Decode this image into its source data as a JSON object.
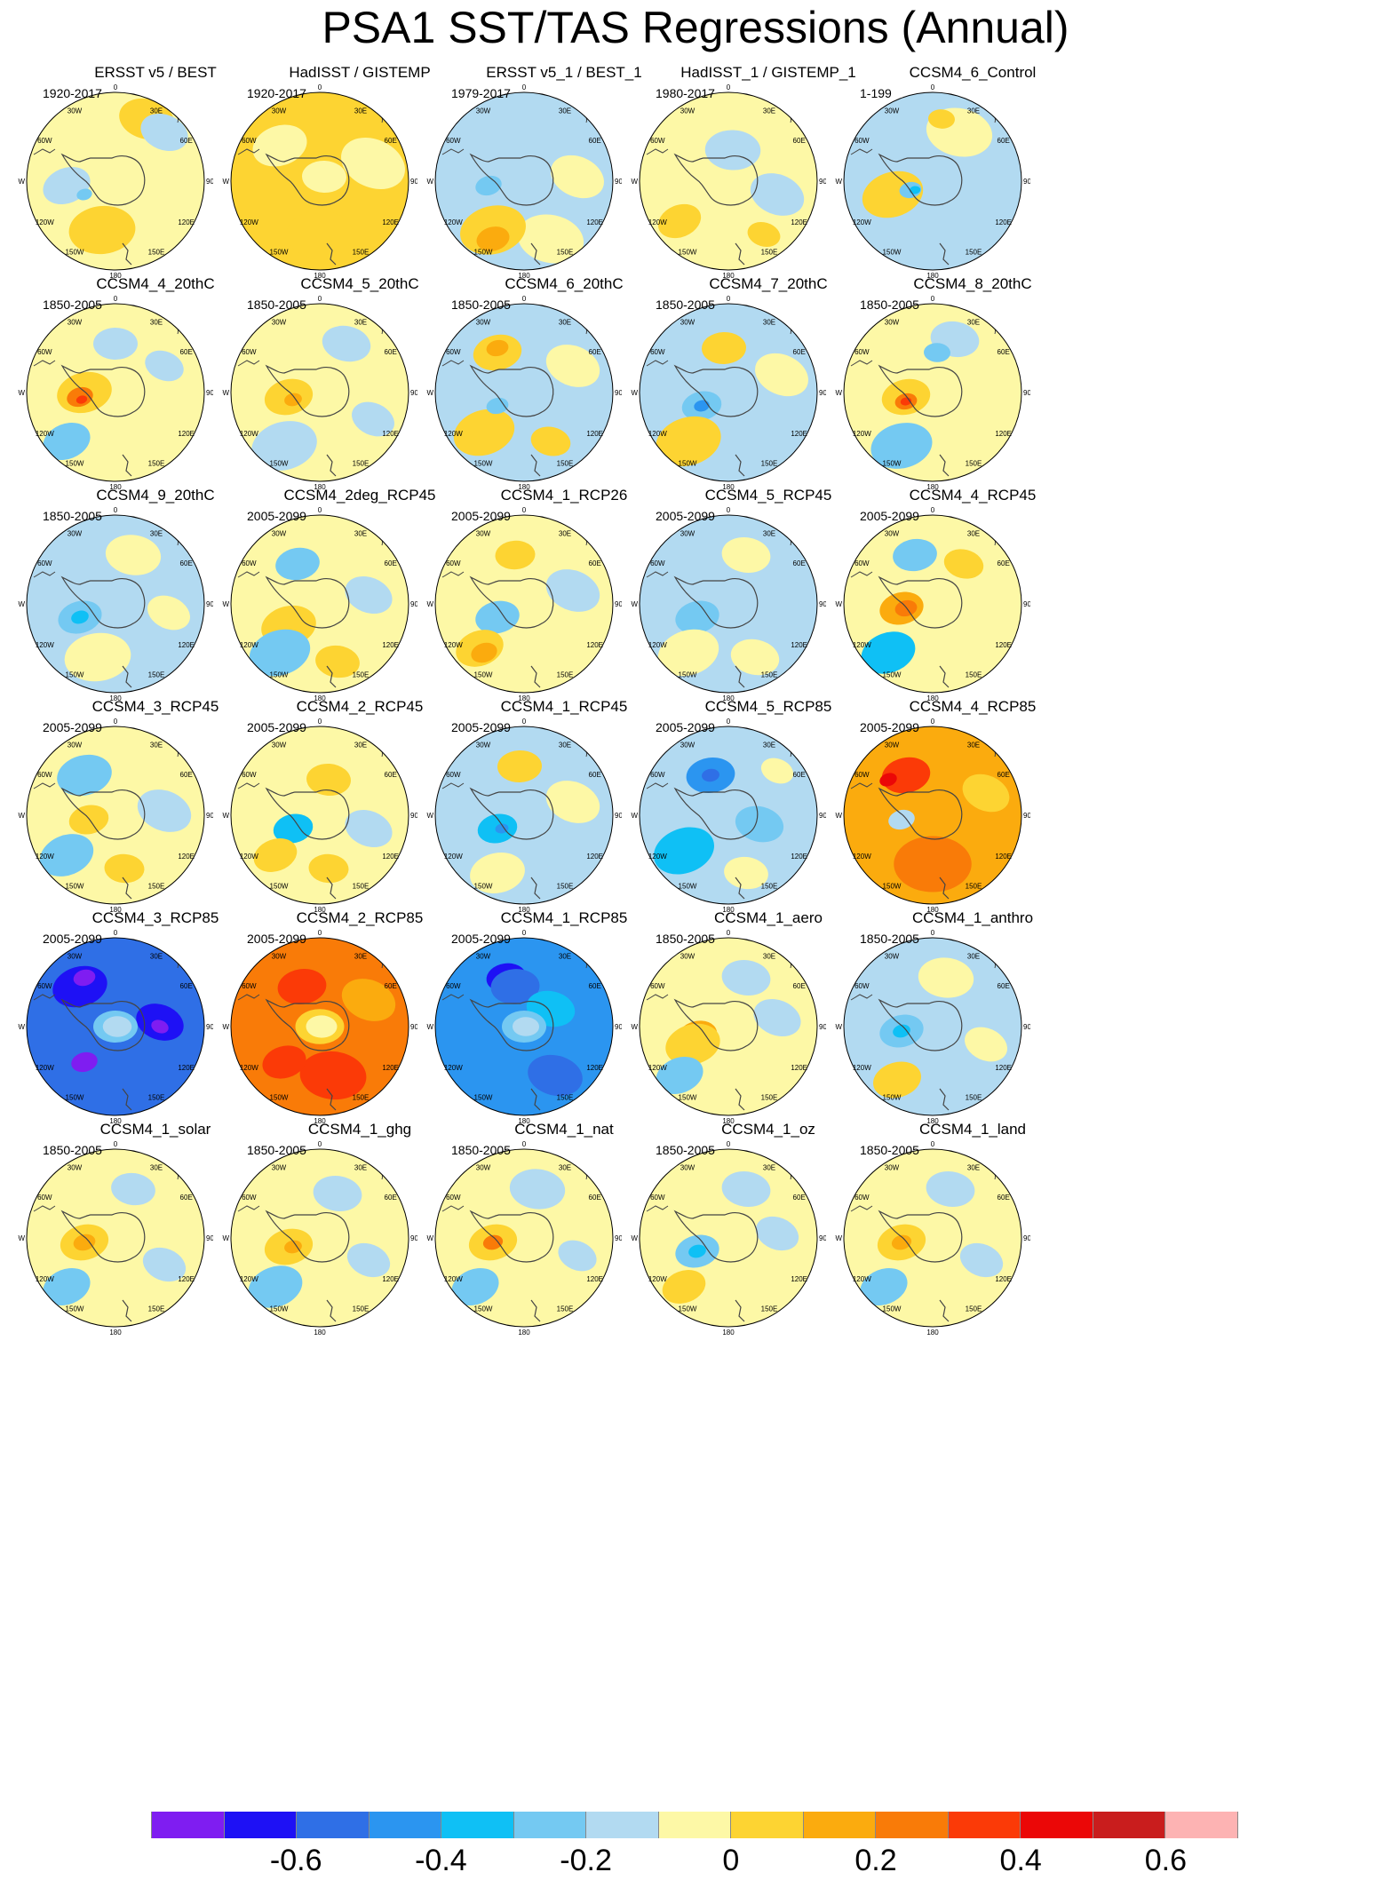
{
  "title": "PSA1 SST/TAS Regressions (Annual)",
  "longitude_labels": [
    "0",
    "30E",
    "60E",
    "90E",
    "120E",
    "150E",
    "180",
    "150W",
    "120W",
    "90W",
    "60W",
    "30W"
  ],
  "palette": [
    "#7f1df1",
    "#1e11f5",
    "#2f6fe6",
    "#2b95f0",
    "#0fc0f5",
    "#74c9f2",
    "#b2daf1",
    "#fdf8a6",
    "#fdd432",
    "#fbab0e",
    "#f97b08",
    "#fb3a07",
    "#eb0707",
    "#c91d1d",
    "#fdb3b3"
  ],
  "colorbar": {
    "ticks": [
      {
        "label": "-0.6",
        "pos": 2
      },
      {
        "label": "-0.4",
        "pos": 4
      },
      {
        "label": "-0.2",
        "pos": 6
      },
      {
        "label": "0",
        "pos": 8
      },
      {
        "label": "0.2",
        "pos": 10
      },
      {
        "label": "0.4",
        "pos": 12
      },
      {
        "label": "0.6",
        "pos": 14
      }
    ]
  },
  "panels": [
    {
      "title": "ERSST v5 / BEST",
      "years": "1920-2017",
      "base": 7,
      "blobs": [
        [
          8,
          0.35,
          0.7,
          0.25
        ],
        [
          8,
          -0.15,
          -0.55,
          0.3
        ],
        [
          6,
          -0.55,
          -0.05,
          0.22
        ],
        [
          5,
          -0.35,
          -0.15,
          0.07
        ],
        [
          6,
          0.55,
          0.55,
          0.22
        ]
      ]
    },
    {
      "title": "HadISST / GISTEMP",
      "years": "1920-2017",
      "base": 8,
      "blobs": [
        [
          7,
          0.6,
          0.2,
          0.3
        ],
        [
          7,
          -0.45,
          0.4,
          0.25
        ],
        [
          7,
          0.05,
          0.05,
          0.2
        ],
        [
          8,
          0.0,
          -0.6,
          0.3
        ]
      ]
    },
    {
      "title": "ERSST v5_1 / BEST_1",
      "years": "1979-2017",
      "base": 6,
      "blobs": [
        [
          7,
          0.3,
          -0.65,
          0.3
        ],
        [
          8,
          -0.35,
          -0.55,
          0.3
        ],
        [
          9,
          -0.35,
          -0.65,
          0.15
        ],
        [
          5,
          -0.4,
          -0.05,
          0.12
        ],
        [
          7,
          0.6,
          0.05,
          0.25
        ]
      ]
    },
    {
      "title": "HadISST_1 / GISTEMP_1",
      "years": "1980-2017",
      "base": 7,
      "blobs": [
        [
          6,
          0.05,
          0.35,
          0.25
        ],
        [
          8,
          -0.55,
          -0.45,
          0.2
        ],
        [
          6,
          0.55,
          -0.15,
          0.25
        ],
        [
          8,
          0.4,
          -0.6,
          0.15
        ]
      ]
    },
    {
      "title": "CCSM4_6_Control",
      "years": "1-199",
      "base": 6,
      "blobs": [
        [
          8,
          -0.45,
          -0.15,
          0.28
        ],
        [
          5,
          -0.25,
          -0.1,
          0.1
        ],
        [
          4,
          -0.2,
          -0.1,
          0.05
        ],
        [
          7,
          0.3,
          0.55,
          0.3
        ],
        [
          8,
          0.1,
          0.7,
          0.12
        ]
      ]
    },
    {
      "title": "CCSM4_4_20thC",
      "years": "1850-2005",
      "base": 7,
      "blobs": [
        [
          8,
          -0.35,
          0.0,
          0.25
        ],
        [
          10,
          -0.4,
          -0.05,
          0.12
        ],
        [
          11,
          -0.38,
          -0.08,
          0.05
        ],
        [
          5,
          -0.55,
          -0.55,
          0.22
        ],
        [
          6,
          0.0,
          0.55,
          0.2
        ],
        [
          6,
          0.55,
          0.3,
          0.18
        ]
      ]
    },
    {
      "title": "CCSM4_5_20thC",
      "years": "1850-2005",
      "base": 7,
      "blobs": [
        [
          8,
          -0.35,
          -0.05,
          0.22
        ],
        [
          9,
          -0.3,
          -0.08,
          0.08
        ],
        [
          6,
          -0.4,
          -0.6,
          0.3
        ],
        [
          6,
          0.3,
          0.55,
          0.22
        ],
        [
          6,
          0.6,
          -0.3,
          0.2
        ]
      ]
    },
    {
      "title": "CCSM4_6_20thC",
      "years": "1850-2005",
      "base": 6,
      "blobs": [
        [
          8,
          -0.3,
          0.45,
          0.22
        ],
        [
          9,
          -0.3,
          0.5,
          0.1
        ],
        [
          8,
          -0.45,
          -0.45,
          0.28
        ],
        [
          5,
          -0.3,
          -0.15,
          0.1
        ],
        [
          8,
          0.3,
          -0.55,
          0.18
        ],
        [
          7,
          0.55,
          0.3,
          0.25
        ]
      ]
    },
    {
      "title": "CCSM4_7_20thC",
      "years": "1850-2005",
      "base": 6,
      "blobs": [
        [
          5,
          -0.3,
          -0.15,
          0.18
        ],
        [
          3,
          -0.3,
          -0.15,
          0.07
        ],
        [
          8,
          -0.45,
          -0.55,
          0.3
        ],
        [
          8,
          -0.05,
          0.5,
          0.2
        ],
        [
          7,
          0.6,
          0.2,
          0.25
        ]
      ]
    },
    {
      "title": "CCSM4_8_20thC",
      "years": "1850-2005",
      "base": 7,
      "blobs": [
        [
          8,
          -0.3,
          -0.05,
          0.22
        ],
        [
          10,
          -0.3,
          -0.1,
          0.1
        ],
        [
          11,
          -0.3,
          -0.1,
          0.05
        ],
        [
          5,
          -0.35,
          -0.6,
          0.28
        ],
        [
          6,
          0.25,
          0.6,
          0.22
        ],
        [
          5,
          0.05,
          0.45,
          0.12
        ]
      ]
    },
    {
      "title": "CCSM4_9_20thC",
      "years": "1850-2005",
      "base": 6,
      "blobs": [
        [
          5,
          -0.4,
          -0.15,
          0.2
        ],
        [
          4,
          -0.4,
          -0.15,
          0.08
        ],
        [
          7,
          -0.2,
          -0.6,
          0.3
        ],
        [
          7,
          0.2,
          0.55,
          0.25
        ],
        [
          7,
          0.6,
          -0.1,
          0.2
        ]
      ]
    },
    {
      "title": "CCSM4_2deg_RCP45",
      "years": "2005-2099",
      "base": 7,
      "blobs": [
        [
          5,
          -0.25,
          0.45,
          0.2
        ],
        [
          8,
          -0.35,
          -0.25,
          0.25
        ],
        [
          5,
          -0.45,
          -0.55,
          0.28
        ],
        [
          6,
          0.55,
          0.1,
          0.22
        ],
        [
          8,
          0.2,
          -0.65,
          0.2
        ]
      ]
    },
    {
      "title": "CCSM4_1_RCP26",
      "years": "2005-2099",
      "base": 7,
      "blobs": [
        [
          5,
          -0.3,
          -0.15,
          0.2
        ],
        [
          8,
          -0.5,
          -0.5,
          0.22
        ],
        [
          9,
          -0.45,
          -0.55,
          0.12
        ],
        [
          6,
          0.55,
          0.15,
          0.25
        ],
        [
          8,
          -0.1,
          0.55,
          0.18
        ]
      ]
    },
    {
      "title": "CCSM4_5_RCP45",
      "years": "2005-2099",
      "base": 6,
      "blobs": [
        [
          5,
          -0.35,
          -0.15,
          0.2
        ],
        [
          7,
          -0.45,
          -0.55,
          0.28
        ],
        [
          7,
          0.3,
          -0.6,
          0.22
        ],
        [
          7,
          0.2,
          0.55,
          0.22
        ]
      ]
    },
    {
      "title": "CCSM4_4_RCP45",
      "years": "2005-2099",
      "base": 7,
      "blobs": [
        [
          9,
          -0.35,
          -0.05,
          0.2
        ],
        [
          10,
          -0.3,
          -0.05,
          0.1
        ],
        [
          4,
          -0.5,
          -0.55,
          0.25
        ],
        [
          5,
          -0.2,
          0.55,
          0.2
        ],
        [
          8,
          0.35,
          0.45,
          0.18
        ]
      ]
    },
    {
      "title": "CCSM4_3_RCP45",
      "years": "2005-2099",
      "base": 7,
      "blobs": [
        [
          5,
          -0.35,
          0.45,
          0.25
        ],
        [
          8,
          -0.3,
          -0.05,
          0.18
        ],
        [
          5,
          -0.55,
          -0.45,
          0.25
        ],
        [
          6,
          0.55,
          0.05,
          0.25
        ],
        [
          8,
          0.1,
          -0.6,
          0.18
        ]
      ]
    },
    {
      "title": "CCSM4_2_RCP45",
      "years": "2005-2099",
      "base": 7,
      "blobs": [
        [
          4,
          -0.3,
          -0.15,
          0.18
        ],
        [
          8,
          -0.5,
          -0.45,
          0.2
        ],
        [
          8,
          0.1,
          0.4,
          0.2
        ],
        [
          6,
          0.55,
          -0.15,
          0.22
        ],
        [
          8,
          0.1,
          -0.6,
          0.18
        ]
      ]
    },
    {
      "title": "CCSM4_1_RCP45",
      "years": "2005-2099",
      "base": 6,
      "blobs": [
        [
          4,
          -0.3,
          -0.15,
          0.18
        ],
        [
          3,
          -0.25,
          -0.15,
          0.06
        ],
        [
          8,
          -0.05,
          0.55,
          0.2
        ],
        [
          7,
          0.55,
          0.15,
          0.25
        ],
        [
          7,
          -0.3,
          -0.65,
          0.25
        ]
      ]
    },
    {
      "title": "CCSM4_5_RCP85",
      "years": "2005-2099",
      "base": 6,
      "blobs": [
        [
          3,
          -0.2,
          0.45,
          0.22
        ],
        [
          2,
          -0.2,
          0.45,
          0.08
        ],
        [
          4,
          -0.5,
          -0.4,
          0.28
        ],
        [
          5,
          0.35,
          -0.1,
          0.22
        ],
        [
          7,
          0.2,
          -0.65,
          0.2
        ],
        [
          7,
          0.55,
          0.5,
          0.15
        ]
      ]
    },
    {
      "title": "CCSM4_4_RCP85",
      "years": "2005-2099",
      "base": 9,
      "blobs": [
        [
          11,
          -0.3,
          0.45,
          0.22
        ],
        [
          12,
          -0.5,
          0.4,
          0.08
        ],
        [
          10,
          0.0,
          -0.55,
          0.35
        ],
        [
          6,
          -0.35,
          -0.05,
          0.12
        ],
        [
          8,
          0.6,
          0.25,
          0.22
        ]
      ]
    },
    {
      "title": "CCSM4_3_RCP85",
      "years": "2005-2099",
      "base": 2,
      "blobs": [
        [
          1,
          -0.4,
          0.45,
          0.25
        ],
        [
          0,
          -0.35,
          0.55,
          0.1
        ],
        [
          1,
          0.5,
          0.05,
          0.22
        ],
        [
          0,
          0.5,
          0.0,
          0.08
        ],
        [
          0,
          -0.35,
          -0.4,
          0.12
        ],
        [
          5,
          0.0,
          0.0,
          0.2
        ],
        [
          6,
          0.02,
          0.0,
          0.13
        ]
      ]
    },
    {
      "title": "CCSM4_2_RCP85",
      "years": "2005-2099",
      "base": 10,
      "blobs": [
        [
          11,
          -0.2,
          0.45,
          0.22
        ],
        [
          9,
          0.55,
          0.3,
          0.25
        ],
        [
          11,
          0.15,
          -0.55,
          0.3
        ],
        [
          11,
          -0.4,
          -0.4,
          0.2
        ],
        [
          8,
          0.0,
          0.0,
          0.22
        ],
        [
          7,
          0.02,
          0.0,
          0.14
        ]
      ]
    },
    {
      "title": "CCSM4_1_RCP85",
      "years": "2005-2099",
      "base": 3,
      "blobs": [
        [
          1,
          -0.2,
          0.55,
          0.18
        ],
        [
          2,
          -0.1,
          0.45,
          0.22
        ],
        [
          2,
          0.35,
          -0.55,
          0.25
        ],
        [
          4,
          0.3,
          0.2,
          0.22
        ],
        [
          5,
          0.0,
          0.0,
          0.2
        ],
        [
          6,
          0.02,
          0.0,
          0.12
        ]
      ]
    },
    {
      "title": "CCSM4_1_aero",
      "years": "1850-2005",
      "base": 7,
      "blobs": [
        [
          9,
          -0.35,
          -0.1,
          0.18
        ],
        [
          8,
          -0.4,
          -0.2,
          0.25
        ],
        [
          5,
          -0.55,
          -0.55,
          0.22
        ],
        [
          6,
          0.2,
          0.55,
          0.22
        ],
        [
          6,
          0.55,
          0.1,
          0.22
        ]
      ]
    },
    {
      "title": "CCSM4_1_anthro",
      "years": "1850-2005",
      "base": 6,
      "blobs": [
        [
          5,
          -0.35,
          -0.05,
          0.2
        ],
        [
          4,
          -0.35,
          -0.05,
          0.08
        ],
        [
          7,
          0.15,
          0.55,
          0.25
        ],
        [
          8,
          -0.4,
          -0.6,
          0.22
        ],
        [
          7,
          0.6,
          -0.2,
          0.2
        ]
      ]
    },
    {
      "title": "CCSM4_1_solar",
      "years": "1850-2005",
      "base": 7,
      "blobs": [
        [
          8,
          -0.35,
          -0.05,
          0.22
        ],
        [
          9,
          -0.35,
          -0.05,
          0.1
        ],
        [
          5,
          -0.55,
          -0.55,
          0.22
        ],
        [
          6,
          0.2,
          0.55,
          0.2
        ],
        [
          6,
          0.55,
          -0.3,
          0.2
        ]
      ]
    },
    {
      "title": "CCSM4_1_ghg",
      "years": "1850-2005",
      "base": 7,
      "blobs": [
        [
          8,
          -0.35,
          -0.1,
          0.22
        ],
        [
          9,
          -0.3,
          -0.1,
          0.08
        ],
        [
          5,
          -0.5,
          -0.55,
          0.25
        ],
        [
          6,
          0.2,
          0.5,
          0.22
        ],
        [
          6,
          0.55,
          -0.25,
          0.2
        ]
      ]
    },
    {
      "title": "CCSM4_1_nat",
      "years": "1850-2005",
      "base": 7,
      "blobs": [
        [
          8,
          -0.35,
          -0.05,
          0.22
        ],
        [
          10,
          -0.35,
          -0.05,
          0.09
        ],
        [
          5,
          -0.55,
          -0.55,
          0.22
        ],
        [
          6,
          0.15,
          0.55,
          0.25
        ],
        [
          6,
          0.6,
          -0.2,
          0.18
        ]
      ]
    },
    {
      "title": "CCSM4_1_oz",
      "years": "1850-2005",
      "base": 7,
      "blobs": [
        [
          5,
          -0.35,
          -0.15,
          0.2
        ],
        [
          4,
          -0.35,
          -0.15,
          0.08
        ],
        [
          8,
          -0.5,
          -0.55,
          0.2
        ],
        [
          6,
          0.2,
          0.55,
          0.22
        ],
        [
          6,
          0.55,
          0.05,
          0.2
        ]
      ]
    },
    {
      "title": "CCSM4_1_land",
      "years": "1850-2005",
      "base": 7,
      "blobs": [
        [
          8,
          -0.35,
          -0.05,
          0.22
        ],
        [
          9,
          -0.35,
          -0.05,
          0.09
        ],
        [
          5,
          -0.55,
          -0.55,
          0.22
        ],
        [
          6,
          0.2,
          0.55,
          0.22
        ],
        [
          6,
          0.55,
          -0.25,
          0.2
        ]
      ]
    }
  ]
}
